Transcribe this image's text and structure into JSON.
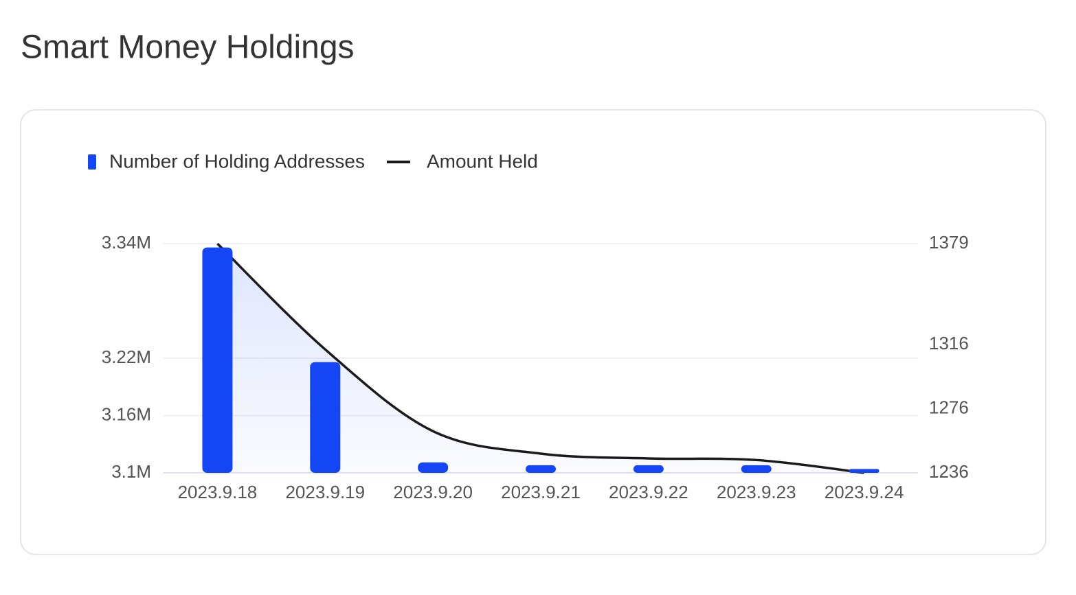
{
  "title": "Smart Money Holdings",
  "chart_data": {
    "type": "bar",
    "categories": [
      "2023.9.18",
      "2023.9.19",
      "2023.9.20",
      "2023.9.21",
      "2023.9.22",
      "2023.9.23",
      "2023.9.24"
    ],
    "series": [
      {
        "name": "Number of Holding Addresses",
        "type": "bar",
        "color": "#1446f5",
        "values": [
          3336000,
          3216000,
          3111000,
          3108000,
          3108000,
          3108000,
          3104000
        ]
      },
      {
        "name": "Amount Held",
        "type": "line",
        "axis": "y2",
        "color": "#1a1a1a",
        "values": [
          1379,
          1313,
          1262,
          1248,
          1245,
          1244,
          1236
        ]
      }
    ],
    "ylim": [
      3100000,
      3340000
    ],
    "yticks": [
      {
        "value": 3100000,
        "label": "3.1M"
      },
      {
        "value": 3160000,
        "label": "3.16M"
      },
      {
        "value": 3220000,
        "label": "3.22M"
      },
      {
        "value": 3340000,
        "label": "3.34M"
      }
    ],
    "y2lim": [
      1236,
      1379
    ],
    "y2ticks": [
      1236,
      1276,
      1316,
      1379
    ],
    "grid": true,
    "legend": "top-left"
  }
}
